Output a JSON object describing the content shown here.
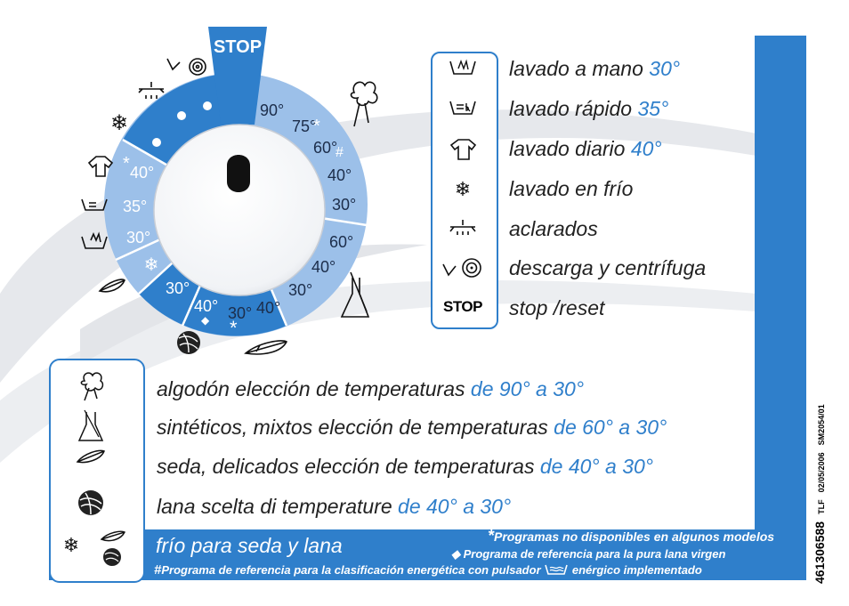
{
  "colors": {
    "accent": "#2f7fcb",
    "light_blue": "#9cc0e9",
    "swoosh": "#e4e6ea"
  },
  "dial": {
    "stop_label": "STOP",
    "cotton_temps": [
      "90°",
      "75°",
      "60°",
      "40°",
      "30°"
    ],
    "cotton_marks": [
      "*",
      "#"
    ],
    "synthetic_temps": [
      "60°",
      "40°",
      "30°"
    ],
    "silk_temps": [
      "30°",
      "40°"
    ],
    "silk_mark": "*",
    "wool_temps": [
      "30°",
      "40°"
    ],
    "wool_mark": "◆",
    "left_temps": [
      "40°",
      "35°",
      "30°"
    ],
    "left_mark": "*",
    "icons": [
      "spin-drain-icon",
      "rinse-icon",
      "snowflake-icon",
      "daily-wash-icon",
      "quick-wash-icon",
      "hand-wash-icon",
      "feather-icon",
      "wool-ball-icon",
      "feather-icon",
      "beaker-icon",
      "cotton-flower-icon"
    ]
  },
  "legend": [
    {
      "icon": "hand-wash-icon",
      "text": "lavado a mano ",
      "temp": "30°"
    },
    {
      "icon": "quick-wash-icon",
      "text": "lavado rápido ",
      "temp": "35°"
    },
    {
      "icon": "daily-wash-icon",
      "text": "lavado diario ",
      "temp": "40°"
    },
    {
      "icon": "snowflake-icon",
      "text": "lavado en frío",
      "temp": ""
    },
    {
      "icon": "rinse-icon",
      "text": "aclarados",
      "temp": ""
    },
    {
      "icon": "spin-drain-icon",
      "text": "descarga y centrífuga",
      "temp": ""
    },
    {
      "icon": "stop-icon",
      "icon_text": "STOP",
      "text": "stop /reset",
      "temp": ""
    }
  ],
  "fabrics": [
    {
      "icon": "cotton-flower-icon",
      "text": "algodón elección de temperaturas ",
      "range": "de 90° a 30°"
    },
    {
      "icon": "beaker-icon",
      "text": "sintéticos, mixtos elección de temperaturas ",
      "range": "de 60° a 30°"
    },
    {
      "icon": "feather-icon",
      "text": "seda, delicados elección de temperaturas ",
      "range": "de 40° a 30°"
    },
    {
      "icon": "wool-ball-icon",
      "text": "lana scelta di temperature ",
      "range": "de 40° a 30°"
    }
  ],
  "cold_wash": "frío para seda y lana",
  "notes": {
    "n1_mark": "*",
    "n1": "Programas no disponibles en algunos modelos",
    "n2_mark": "◆",
    "n2": "Programa de referencia para la pura lana virgen",
    "n3_mark": "#",
    "n3a": "Programa de referencia para la clasificación energética con pulsador",
    "n3b": "enérgico implementado"
  },
  "code": {
    "number": "461306588",
    "tlf": "TLF",
    "date": "02/05/2006",
    "ref": "SM2054/01"
  }
}
